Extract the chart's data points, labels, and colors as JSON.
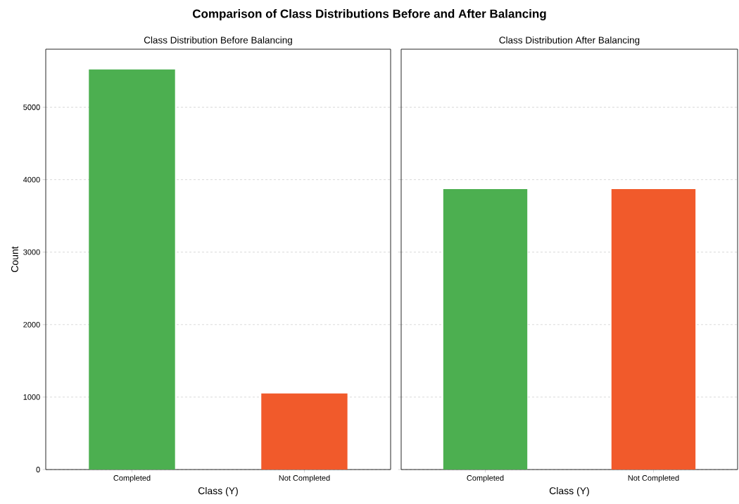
{
  "chart_data": [
    {
      "type": "bar",
      "title": "Class Distribution Before Balancing",
      "xlabel": "Class (Y)",
      "ylabel": "Count",
      "annotations": [
        "Comparison of Class Distributions Before and After Balancing"
      ],
      "categories": [
        "Completed",
        "Not Completed"
      ],
      "values": [
        5520,
        1050
      ],
      "colors": [
        "#4caf50",
        "#f15a2b"
      ],
      "ylim": [
        0,
        5800
      ],
      "yticks": [
        0,
        1000,
        2000,
        3000,
        4000,
        5000
      ],
      "grid": "y"
    },
    {
      "type": "bar",
      "title": "Class Distribution After Balancing",
      "xlabel": "Class (Y)",
      "categories": [
        "Completed",
        "Not Completed"
      ],
      "values": [
        3870,
        3870
      ],
      "colors": [
        "#4caf50",
        "#f15a2b"
      ],
      "ylim": [
        0,
        5800
      ],
      "yticks": [
        0,
        1000,
        2000,
        3000,
        4000,
        5000
      ],
      "grid": "y",
      "tick_labels": "x"
    }
  ]
}
